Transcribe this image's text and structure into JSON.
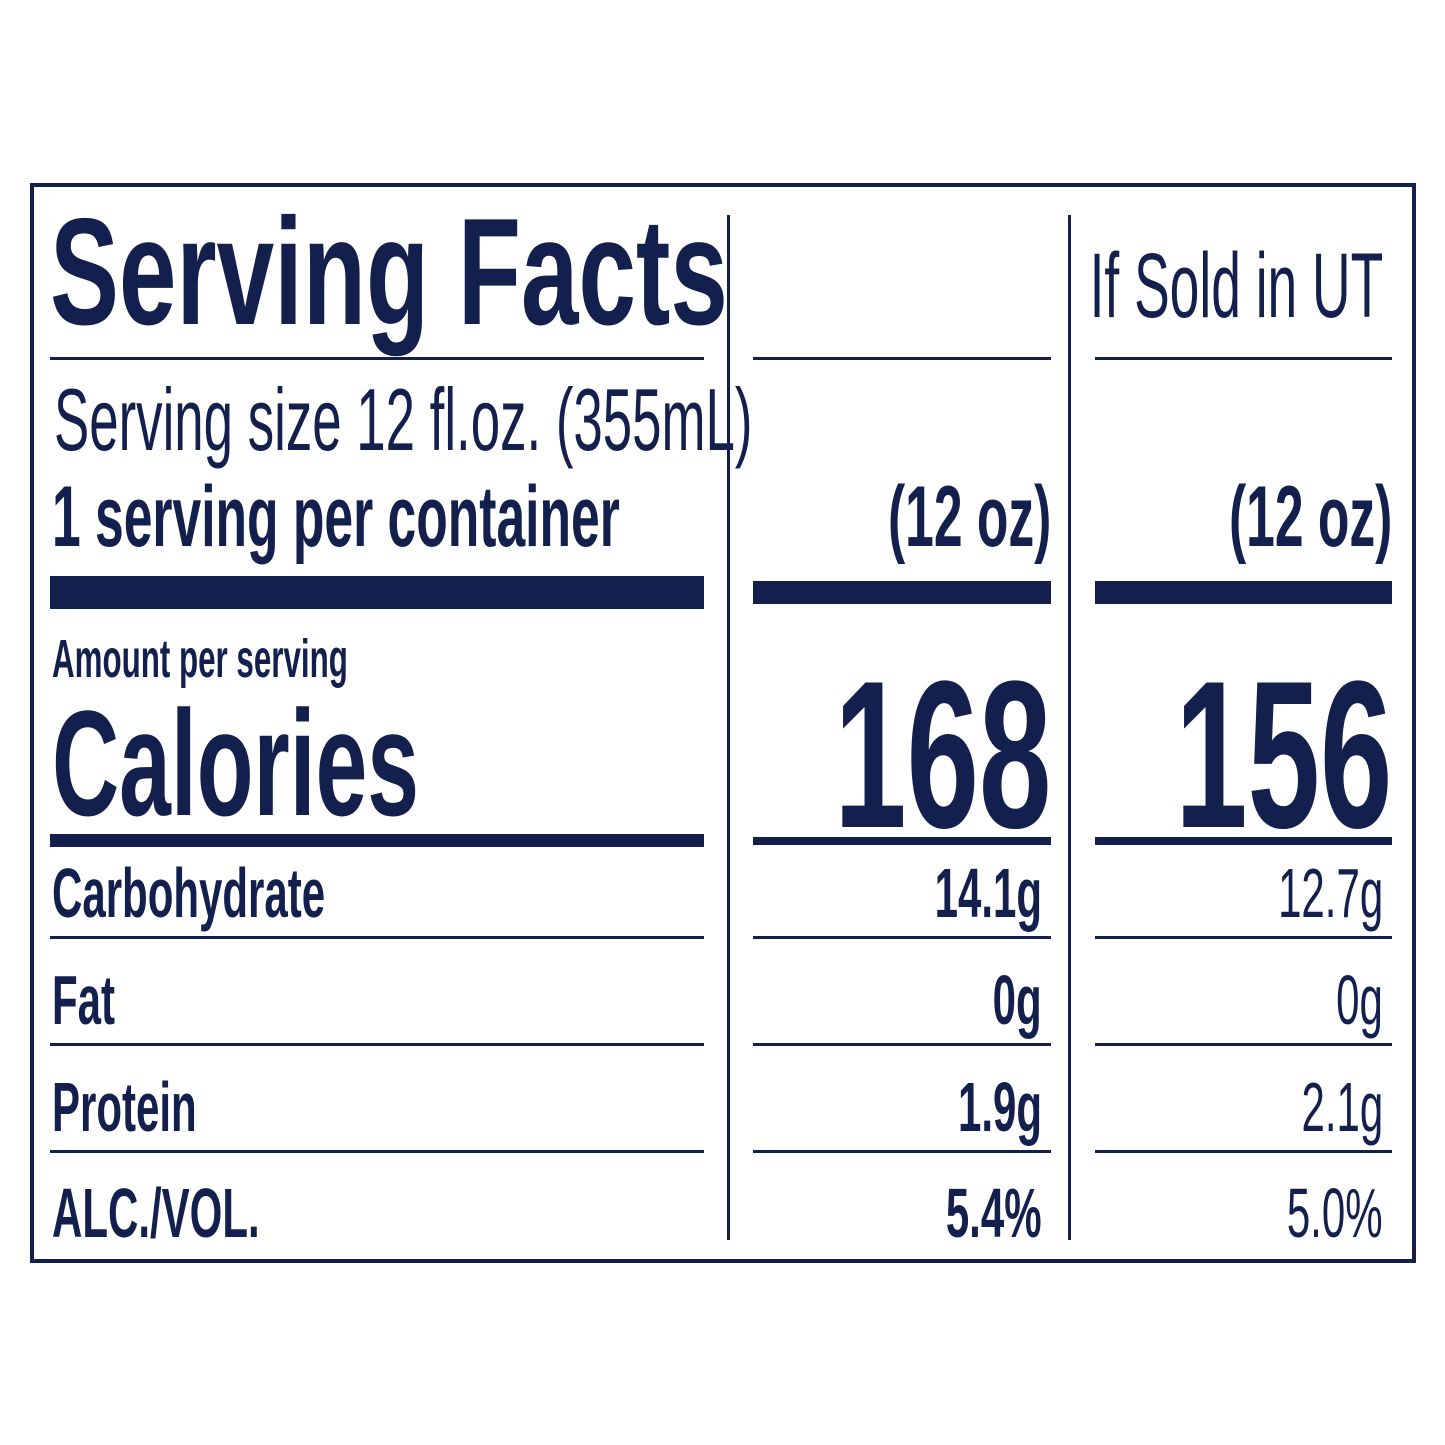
{
  "title": "Serving Facts",
  "columns": [
    {
      "header": "",
      "size": "(12 oz)",
      "calories": "168"
    },
    {
      "header": "If Sold in UT",
      "size": "(12 oz)",
      "calories": "156"
    }
  ],
  "serving_size": "Serving size 12 fl.oz. (355mL)",
  "servings_per_container": "1 serving per container",
  "amount_per_serving": "Amount per serving",
  "calories_label": "Calories",
  "rows": [
    {
      "label": "Carbohydrate",
      "values": [
        "14.1g",
        "12.7g"
      ]
    },
    {
      "label": "Fat",
      "values": [
        "0g",
        "0g"
      ]
    },
    {
      "label": "Protein",
      "values": [
        "1.9g",
        "2.1g"
      ]
    },
    {
      "label": "ALC./VOL.",
      "values": [
        "5.4%",
        "5.0%"
      ]
    }
  ],
  "colors": {
    "ink": "#13204d",
    "background": "#ffffff"
  }
}
